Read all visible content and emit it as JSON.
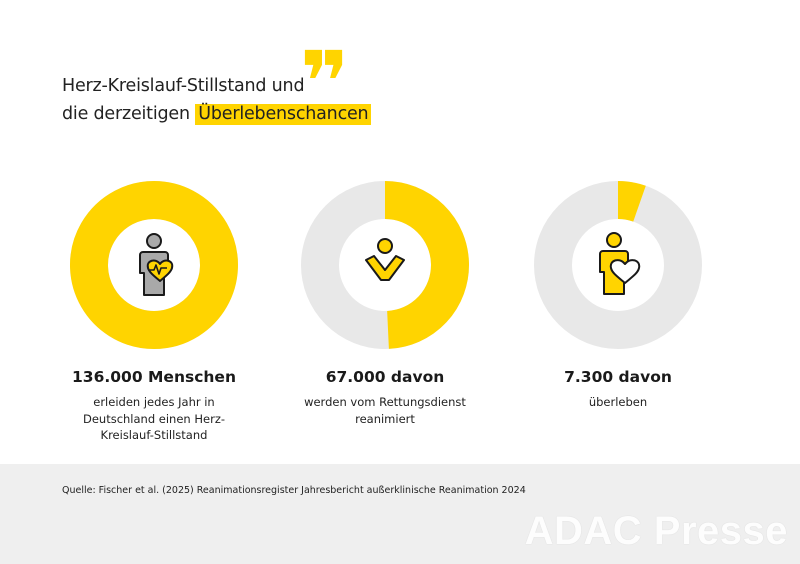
{
  "title": {
    "line1": "Herz-Kreislauf-Stillstand und",
    "line2_prefix": "die derzeitigen ",
    "line2_highlight": "Überlebenschancen"
  },
  "colors": {
    "accent": "#ffd400",
    "ring_background": "#e8e8e8",
    "icon_gray": "#a9a9a9",
    "icon_outline": "#1a1a1a",
    "footer_background": "#efefef"
  },
  "chart_data": {
    "type": "pie",
    "variant": "donut",
    "reference_total": 136000,
    "items": [
      {
        "value_label": "136.000 Menschen",
        "value": 136000,
        "fraction": 1.0,
        "description": "erleiden jedes Jahr in Deutschland einen Herz-Kreislauf-Stillstand",
        "icon": "person-with-heart-icon"
      },
      {
        "value_label": "67.000 davon",
        "value": 67000,
        "fraction": 0.4926,
        "description": "werden vom Rettungsdienst reanimiert",
        "icon": "resuscitation-person-icon"
      },
      {
        "value_label": "7.300 davon",
        "value": 7300,
        "fraction": 0.0537,
        "description": "überleben",
        "icon": "person-heart-icon"
      }
    ]
  },
  "footer": {
    "source": "Quelle: Fischer et al. (2025) Reanimationsregister Jahresbericht außerklinische Reanimation 2024",
    "watermark": "ADAC Presse"
  }
}
